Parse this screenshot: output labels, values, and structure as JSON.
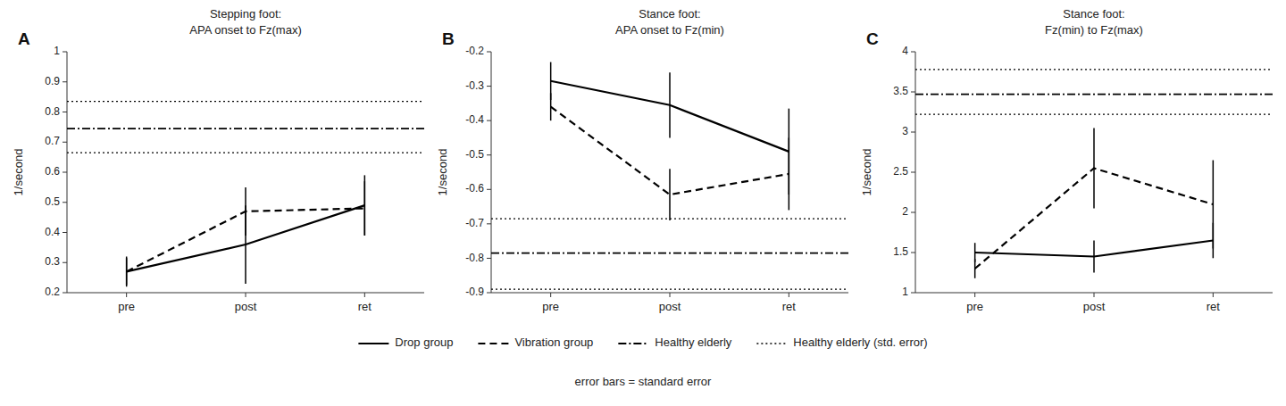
{
  "chart_data": {
    "type": "line",
    "series": [
      {
        "name": "Drop group",
        "color": "black",
        "line_style": "solid"
      },
      {
        "name": "Vibration group",
        "color": "black",
        "line_style": "dashed"
      }
    ],
    "reference_lines": [
      {
        "name": "Healthy elderly",
        "color": "black",
        "line_style": "dashdot"
      },
      {
        "name": "Healthy elderly (std. error)",
        "color": "black",
        "line_style": "dotted"
      }
    ],
    "note": "error bars = standard error",
    "panels": [
      {
        "label": "A",
        "title": "Stepping foot:",
        "subtitle": "APA onset to Fz(max)",
        "ylabel": "1/second",
        "categories": [
          "pre",
          "post",
          "ret"
        ],
        "ylim": [
          0.2,
          1.0
        ],
        "yticks": [
          0.2,
          0.3,
          0.4,
          0.5,
          0.6,
          0.7,
          0.8,
          0.9,
          1
        ],
        "series": [
          {
            "values": [
              0.27,
              0.36,
              0.49
            ],
            "errors": [
              0.05,
              0.13,
              0.1
            ]
          },
          {
            "values": [
              0.27,
              0.47,
              0.48
            ],
            "errors": [
              0.045,
              0.08,
              0.09
            ]
          }
        ],
        "reference": {
          "mean": 0.745,
          "se_upper": 0.835,
          "se_lower": 0.665
        }
      },
      {
        "label": "B",
        "title": "Stance foot:",
        "subtitle": "APA onset to Fz(min)",
        "ylabel": "1/second",
        "categories": [
          "pre",
          "post",
          "ret"
        ],
        "ylim": [
          -0.9,
          -0.2
        ],
        "yticks": [
          -0.9,
          -0.8,
          -0.7,
          -0.6,
          -0.5,
          -0.4,
          -0.3,
          -0.2
        ],
        "series": [
          {
            "values": [
              -0.285,
              -0.355,
              -0.49
            ],
            "errors": [
              0.055,
              0.095,
              0.125
            ]
          },
          {
            "values": [
              -0.36,
              -0.615,
              -0.555
            ],
            "errors": [
              0.04,
              0.075,
              0.105
            ]
          }
        ],
        "reference": {
          "mean": -0.785,
          "se_upper": -0.685,
          "se_lower": -0.89
        }
      },
      {
        "label": "C",
        "title": "Stance foot:",
        "subtitle": "Fz(min) to Fz(max)",
        "ylabel": "1/second",
        "categories": [
          "pre",
          "post",
          "ret"
        ],
        "ylim": [
          1.0,
          4.0
        ],
        "yticks": [
          1,
          1.5,
          2,
          2.5,
          3,
          3.5,
          4
        ],
        "series": [
          {
            "values": [
              1.5,
              1.45,
              1.65
            ],
            "errors": [
              0.12,
              0.2,
              0.22
            ]
          },
          {
            "values": [
              1.3,
              2.55,
              2.1
            ],
            "errors": [
              0.12,
              0.5,
              0.55
            ]
          }
        ],
        "reference": {
          "mean": 3.47,
          "se_upper": 3.78,
          "se_lower": 3.22
        }
      }
    ]
  }
}
